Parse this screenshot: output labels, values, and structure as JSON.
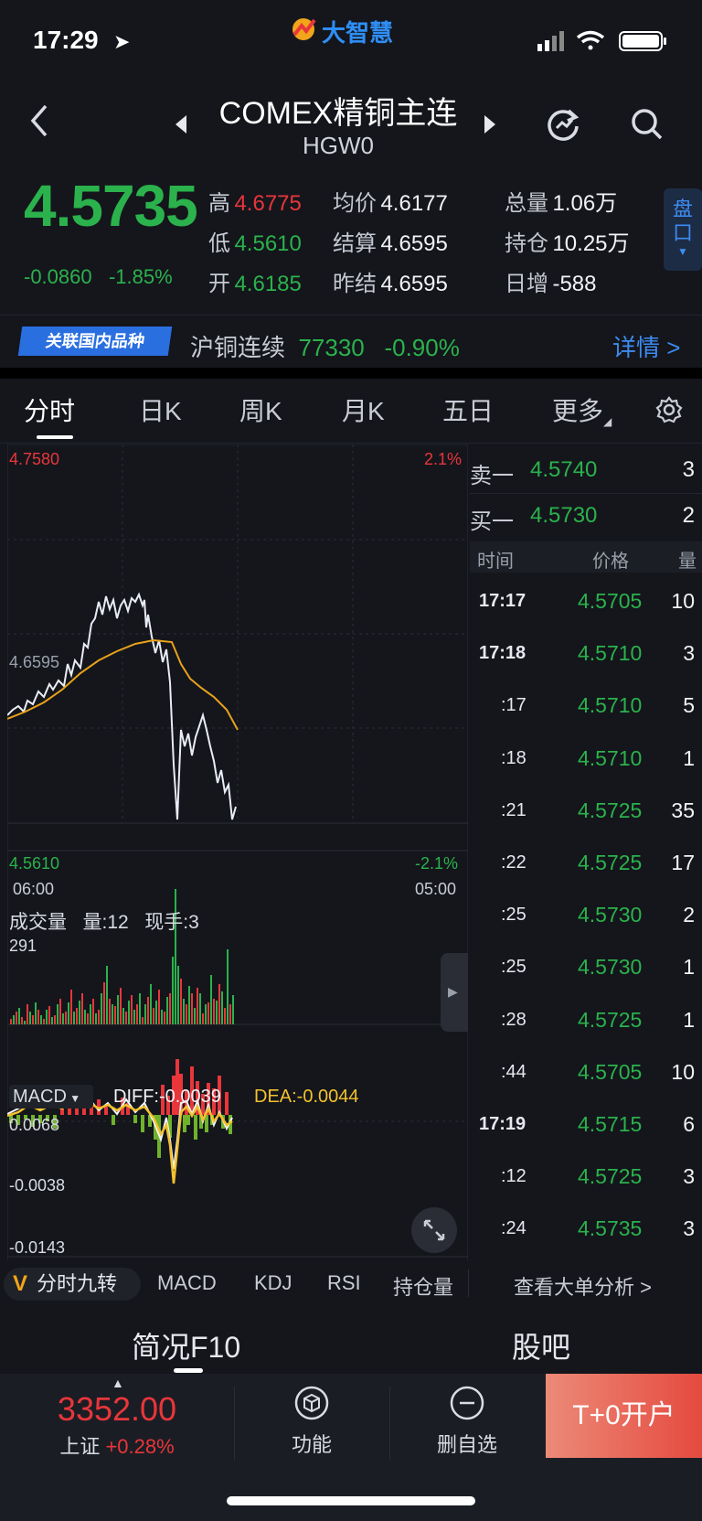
{
  "status": {
    "time": "17:29"
  },
  "app_logo": "大智慧",
  "header": {
    "title": "COMEX精铜主连",
    "code": "HGW0"
  },
  "quote": {
    "price": "4.5735",
    "change": "-0.0860",
    "change_pct": "-1.85%",
    "high_label": "高",
    "high": "4.6775",
    "low_label": "低",
    "low": "4.5610",
    "open_label": "开",
    "open": "4.6185",
    "avg_label": "均价",
    "avg": "4.6177",
    "settle_label": "结算",
    "settle": "4.6595",
    "prev_settle_label": "昨结",
    "prev_settle": "4.6595",
    "volume_label": "总量",
    "volume": "1.06万",
    "oi_label": "持仓",
    "oi": "10.25万",
    "daily_inc_label": "日增",
    "daily_inc": "-588",
    "pan_btn": "盘口"
  },
  "related": {
    "badge": "关联国内品种",
    "name": "沪铜连续",
    "price": "77330",
    "pct": "-0.90%",
    "detail": "详情 >"
  },
  "tabs": [
    "分时",
    "日K",
    "周K",
    "月K",
    "五日",
    "更多"
  ],
  "chart": {
    "top_price": "4.7580",
    "top_pct": "2.1%",
    "mid_price": "4.6595",
    "bottom_price": "4.5610",
    "bottom_pct": "-2.1%",
    "time_start": "06:00",
    "time_end": "05:00",
    "vol_title": "成交量",
    "vol_qty": "量:12",
    "vol_now": "现手:3",
    "vol_max": "291",
    "macd_name": "MACD",
    "diff": "DIFF:-0.0039",
    "dea": "DEA:-0.0044",
    "macd_top": "0.0068",
    "macd_mid": "-0.0038",
    "macd_bottom": "-0.0143"
  },
  "orderbook": {
    "sell1_label": "卖一",
    "sell1_price": "4.5740",
    "sell1_qty": "3",
    "buy1_label": "买一",
    "buy1_price": "4.5730",
    "buy1_qty": "2",
    "head_time": "时间",
    "head_price": "价格",
    "head_qty": "量",
    "ticks": [
      {
        "t": "17:17",
        "p": "4.5705",
        "q": "10"
      },
      {
        "t": "17:18",
        "p": "4.5710",
        "q": "3"
      },
      {
        "t": ":17",
        "p": "4.5710",
        "q": "5"
      },
      {
        "t": ":18",
        "p": "4.5710",
        "q": "1"
      },
      {
        "t": ":21",
        "p": "4.5725",
        "q": "35"
      },
      {
        "t": ":22",
        "p": "4.5725",
        "q": "17"
      },
      {
        "t": ":25",
        "p": "4.5730",
        "q": "2"
      },
      {
        "t": ":25",
        "p": "4.5730",
        "q": "1"
      },
      {
        "t": ":28",
        "p": "4.5725",
        "q": "1"
      },
      {
        "t": ":44",
        "p": "4.5705",
        "q": "10"
      },
      {
        "t": "17:19",
        "p": "4.5715",
        "q": "6"
      },
      {
        "t": ":12",
        "p": "4.5725",
        "q": "3"
      },
      {
        "t": ":24",
        "p": "4.5735",
        "q": "3"
      }
    ]
  },
  "indicators": {
    "nine": "分时九转",
    "items": [
      "MACD",
      "KDJ",
      "RSI",
      "持仓量"
    ],
    "bigorder": "查看大单分析 >"
  },
  "sections": {
    "f10": "简况F10",
    "forum": "股吧"
  },
  "bottom": {
    "index_value": "3352.00",
    "index_name": "上证",
    "index_pct": "+0.28%",
    "func": "功能",
    "del_watch": "删自选",
    "cta": "T+0开户"
  },
  "colors": {
    "up": "#e8363b",
    "down": "#2bb24c",
    "accent": "#3d8bf0",
    "avg_line": "#e8a21a"
  }
}
